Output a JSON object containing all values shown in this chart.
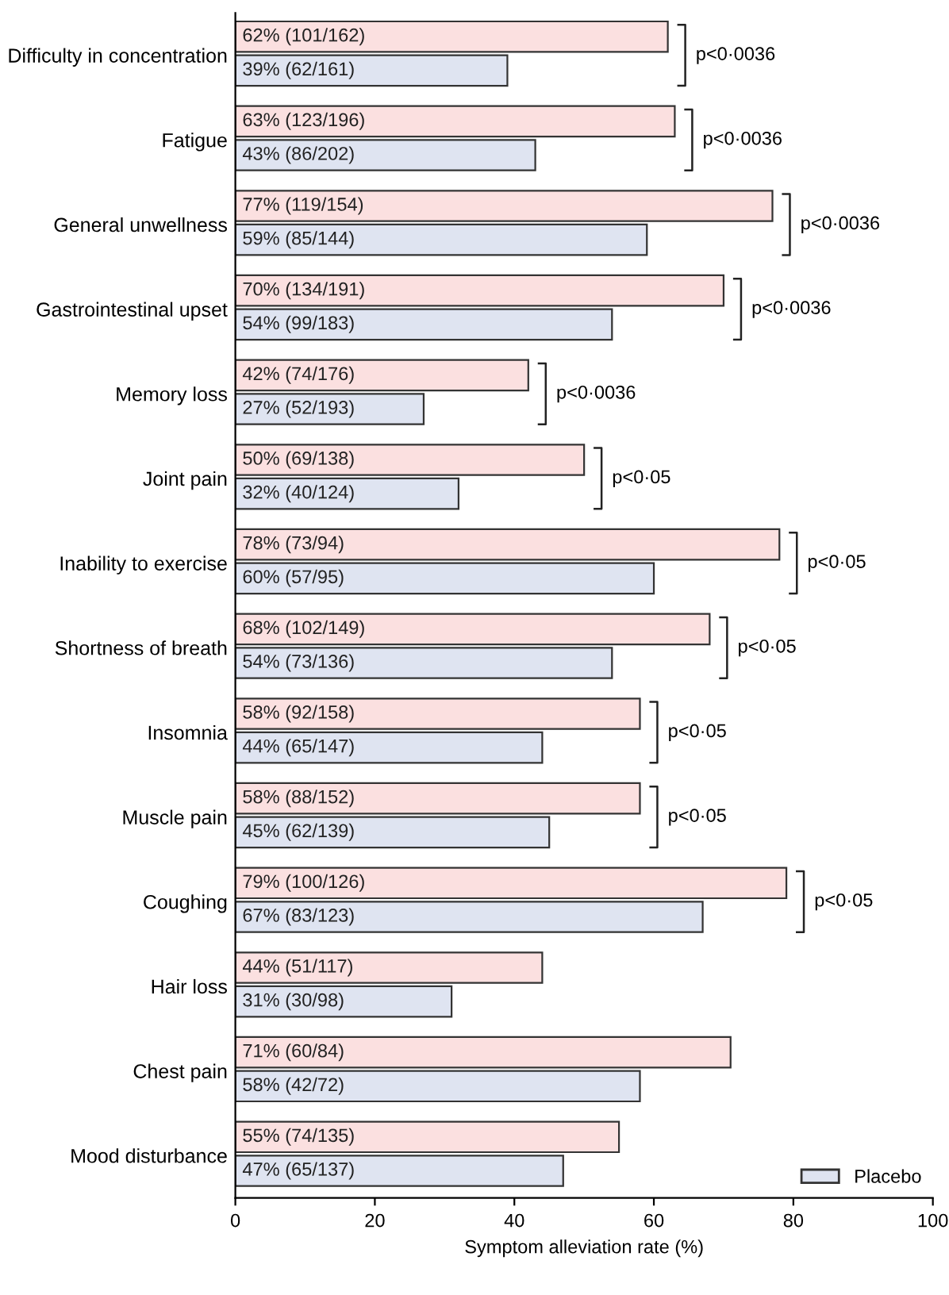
{
  "chart_data": {
    "type": "bar",
    "orientation": "horizontal",
    "categories": [
      "Difficulty in concentration",
      "Fatigue",
      "General unwellness",
      "Gastrointestinal upset",
      "Memory loss",
      "Joint pain",
      "Inability to exercise",
      "Shortness of breath",
      "Insomnia",
      "Muscle pain",
      "Coughing",
      "Hair loss",
      "Chest pain",
      "Mood disturbance"
    ],
    "series": [
      {
        "color": "#fbe0e0",
        "values": [
          62,
          63,
          77,
          70,
          42,
          50,
          78,
          68,
          58,
          58,
          79,
          44,
          71,
          55
        ],
        "value_labels": [
          "62% (101/162)",
          "63% (123/196)",
          "77% (119/154)",
          "70% (134/191)",
          "42% (74/176)",
          "50% (69/138)",
          "78% (73/94)",
          "68% (102/149)",
          "58% (92/158)",
          "58% (88/152)",
          "79% (100/126)",
          "44% (51/117)",
          "71% (60/84)",
          "55% (74/135)"
        ]
      },
      {
        "name": "Placebo",
        "color": "#dfe4f1",
        "values": [
          39,
          43,
          59,
          54,
          27,
          32,
          60,
          54,
          44,
          45,
          67,
          31,
          58,
          47
        ],
        "value_labels": [
          "39% (62/161)",
          "43% (86/202)",
          "59% (85/144)",
          "54% (99/183)",
          "27% (52/193)",
          "32% (40/124)",
          "60% (57/95)",
          "54% (73/136)",
          "44% (65/147)",
          "45% (62/139)",
          "67% (83/123)",
          "31% (30/98)",
          "58% (42/72)",
          "47% (65/137)"
        ]
      }
    ],
    "xlim": [
      0,
      100
    ],
    "xticks": [
      0,
      20,
      40,
      60,
      80,
      100
    ],
    "xlabel": "Symptom alleviation rate (%)",
    "grid": false,
    "legend": "bottom right",
    "annotations": [
      "p<0·0036",
      "p<0·0036",
      "p<0·0036",
      "p<0·0036",
      "p<0·0036",
      "p<0·05",
      "p<0·05",
      "p<0·05",
      "p<0·05",
      "p<0·05",
      "p<0·05"
    ]
  }
}
